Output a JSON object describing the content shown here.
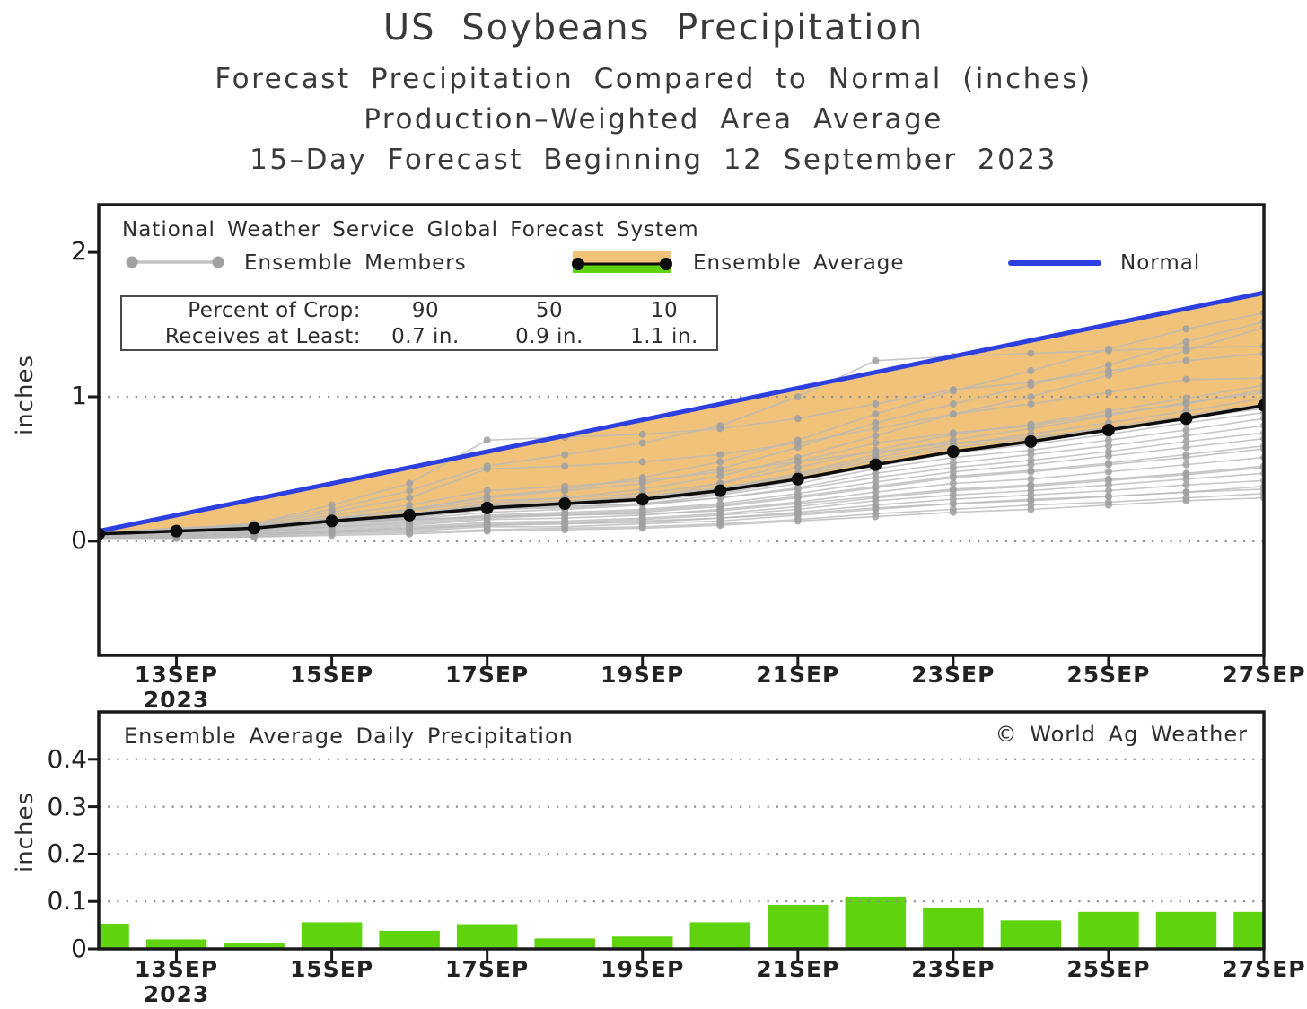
{
  "title": {
    "line1": "US Soybeans Precipitation",
    "line2": "Forecast Precipitation Compared to Normal (inches)",
    "line3": "Production–Weighted Area Average",
    "line4": "15–Day Forecast Beginning 12 September 2023"
  },
  "top_chart": {
    "legend_header": "National Weather Service Global Forecast System",
    "legend": {
      "members_label": "Ensemble Members",
      "average_label": "Ensemble Average",
      "normal_label": "Normal"
    },
    "crop_box": {
      "row1_label": "Percent of Crop:",
      "row1_values": [
        "90",
        "50",
        "10"
      ],
      "row2_label": "Receives at Least:",
      "row2_values": [
        "0.7 in.",
        "0.9 in.",
        "1.1 in."
      ]
    },
    "ylabel": "inches",
    "ytick_labels": [
      "0",
      "1",
      "2"
    ],
    "xtick_labels": [
      "13SEP",
      "15SEP",
      "17SEP",
      "19SEP",
      "21SEP",
      "23SEP",
      "25SEP",
      "27SEP"
    ],
    "year_label": "2023"
  },
  "bottom_chart": {
    "title": "Ensemble Average Daily Precipitation",
    "credit": "© World Ag Weather",
    "ylabel": "inches",
    "ytick_labels": [
      "0",
      "0.1",
      "0.2",
      "0.3",
      "0.4"
    ],
    "xtick_labels": [
      "13SEP",
      "15SEP",
      "17SEP",
      "19SEP",
      "21SEP",
      "23SEP",
      "25SEP",
      "27SEP"
    ],
    "year_label": "2023"
  },
  "colors": {
    "normal_blue": "#2e3fe0",
    "band_orange": "#f0c27a",
    "bar_green": "#5fd40e",
    "member_line_gray": "#b9b9b9",
    "member_dot_gray": "#a0a0a0",
    "average_black": "#0d0d0d",
    "frame_black": "#1a1a1a",
    "grid_gray": "#8f8f8f",
    "legend_swatch_gray": "#c4c4c4"
  },
  "chart_data": [
    {
      "type": "line",
      "title": "Forecast cumulative precipitation compared to normal (inches)",
      "x": [
        "12SEP",
        "13SEP",
        "14SEP",
        "15SEP",
        "16SEP",
        "17SEP",
        "18SEP",
        "19SEP",
        "20SEP",
        "21SEP",
        "22SEP",
        "23SEP",
        "24SEP",
        "25SEP",
        "26SEP",
        "27SEP"
      ],
      "ylabel": "inches",
      "ylim": [
        -0.79,
        2.33
      ],
      "yticks": [
        0,
        1,
        2
      ],
      "gridlines_y": [
        0,
        1
      ],
      "legend_position": "top-inside",
      "series": [
        {
          "name": "Normal",
          "values": [
            0.07,
            0.18,
            0.29,
            0.4,
            0.51,
            0.62,
            0.73,
            0.84,
            0.95,
            1.06,
            1.17,
            1.28,
            1.39,
            1.5,
            1.61,
            1.72
          ]
        },
        {
          "name": "Ensemble Average",
          "values": [
            0.05,
            0.07,
            0.09,
            0.14,
            0.18,
            0.23,
            0.26,
            0.29,
            0.35,
            0.43,
            0.53,
            0.62,
            0.69,
            0.77,
            0.85,
            0.94
          ]
        },
        {
          "name": "Ensemble Members",
          "members": [
            [
              0.02,
              0.02,
              0.03,
              0.05,
              0.06,
              0.08,
              0.09,
              0.1,
              0.12,
              0.15,
              0.19,
              0.22,
              0.25,
              0.27,
              0.3,
              0.33
            ],
            [
              0.02,
              0.03,
              0.04,
              0.06,
              0.07,
              0.1,
              0.1,
              0.12,
              0.14,
              0.18,
              0.22,
              0.26,
              0.28,
              0.31,
              0.34,
              0.38
            ],
            [
              0.03,
              0.04,
              0.05,
              0.07,
              0.09,
              0.12,
              0.13,
              0.15,
              0.18,
              0.22,
              0.28,
              0.32,
              0.35,
              0.39,
              0.43,
              0.47
            ],
            [
              0.05,
              0.08,
              0.1,
              0.13,
              0.15,
              0.17,
              0.18,
              0.19,
              0.21,
              0.26,
              0.31,
              0.36,
              0.39,
              0.43,
              0.47,
              0.52
            ],
            [
              0.03,
              0.04,
              0.06,
              0.09,
              0.11,
              0.15,
              0.16,
              0.18,
              0.22,
              0.27,
              0.34,
              0.4,
              0.43,
              0.48,
              0.53,
              0.58
            ],
            [
              0.03,
              0.05,
              0.06,
              0.1,
              0.12,
              0.16,
              0.18,
              0.2,
              0.24,
              0.3,
              0.37,
              0.44,
              0.48,
              0.53,
              0.58,
              0.64
            ],
            [
              0.04,
              0.05,
              0.07,
              0.11,
              0.14,
              0.18,
              0.2,
              0.22,
              0.26,
              0.33,
              0.41,
              0.48,
              0.53,
              0.59,
              0.65,
              0.71
            ],
            [
              0.06,
              0.09,
              0.11,
              0.15,
              0.18,
              0.22,
              0.24,
              0.26,
              0.3,
              0.36,
              0.44,
              0.51,
              0.56,
              0.62,
              0.69,
              0.75
            ],
            [
              0.04,
              0.06,
              0.08,
              0.12,
              0.15,
              0.2,
              0.22,
              0.25,
              0.3,
              0.37,
              0.47,
              0.54,
              0.6,
              0.66,
              0.73,
              0.8
            ],
            [
              0.05,
              0.06,
              0.08,
              0.13,
              0.16,
              0.22,
              0.23,
              0.26,
              0.32,
              0.4,
              0.5,
              0.58,
              0.63,
              0.7,
              0.77,
              0.85
            ],
            [
              0.05,
              0.07,
              0.09,
              0.13,
              0.17,
              0.23,
              0.25,
              0.28,
              0.33,
              0.42,
              0.52,
              0.61,
              0.67,
              0.74,
              0.82,
              0.89
            ],
            [
              0.05,
              0.07,
              0.09,
              0.14,
              0.18,
              0.24,
              0.27,
              0.3,
              0.36,
              0.45,
              0.56,
              0.65,
              0.71,
              0.79,
              0.87,
              0.95
            ],
            [
              0.05,
              0.07,
              0.1,
              0.15,
              0.19,
              0.25,
              0.28,
              0.31,
              0.37,
              0.46,
              0.58,
              0.67,
              0.74,
              0.82,
              0.9,
              0.99
            ],
            [
              0.04,
              0.06,
              0.08,
              0.12,
              0.16,
              0.22,
              0.25,
              0.29,
              0.36,
              0.47,
              0.6,
              0.7,
              0.78,
              0.87,
              0.96,
              1.03
            ],
            [
              0.06,
              0.08,
              0.1,
              0.16,
              0.21,
              0.28,
              0.3,
              0.33,
              0.4,
              0.51,
              0.63,
              0.74,
              0.81,
              0.9,
              0.99,
              1.08
            ],
            [
              0.05,
              0.08,
              0.11,
              0.2,
              0.3,
              0.5,
              0.52,
              0.55,
              0.6,
              0.68,
              0.78,
              0.88,
              0.95,
              1.03,
              1.12,
              1.13
            ],
            [
              0.05,
              0.08,
              0.12,
              0.25,
              0.4,
              0.7,
              0.72,
              0.74,
              0.78,
              0.85,
              0.95,
              1.05,
              1.1,
              1.18,
              1.25,
              1.3
            ],
            [
              0.06,
              0.09,
              0.12,
              0.22,
              0.35,
              0.52,
              0.6,
              0.68,
              0.8,
              1.0,
              1.25,
              1.28,
              1.3,
              1.32,
              1.34,
              1.35
            ],
            [
              0.05,
              0.07,
              0.1,
              0.15,
              0.22,
              0.3,
              0.35,
              0.4,
              0.5,
              0.65,
              0.82,
              0.95,
              1.08,
              1.22,
              1.38,
              1.52
            ],
            [
              0.04,
              0.06,
              0.09,
              0.14,
              0.19,
              0.26,
              0.3,
              0.36,
              0.45,
              0.58,
              0.73,
              0.88,
              1.0,
              1.15,
              1.32,
              1.48
            ],
            [
              0.05,
              0.08,
              0.1,
              0.16,
              0.22,
              0.31,
              0.36,
              0.44,
              0.55,
              0.7,
              0.88,
              1.04,
              1.18,
              1.33,
              1.47,
              1.58
            ],
            [
              0.03,
              0.05,
              0.07,
              0.1,
              0.13,
              0.17,
              0.19,
              0.21,
              0.25,
              0.31,
              0.38,
              0.45,
              0.49,
              0.54,
              0.6,
              0.66
            ],
            [
              0.02,
              0.03,
              0.05,
              0.08,
              0.1,
              0.13,
              0.14,
              0.16,
              0.19,
              0.24,
              0.3,
              0.35,
              0.38,
              0.42,
              0.46,
              0.51
            ],
            [
              0.02,
              0.02,
              0.03,
              0.04,
              0.05,
              0.07,
              0.08,
              0.09,
              0.11,
              0.14,
              0.17,
              0.2,
              0.22,
              0.25,
              0.28,
              0.3
            ],
            [
              0.05,
              0.07,
              0.09,
              0.14,
              0.18,
              0.24,
              0.26,
              0.29,
              0.4,
              0.55,
              0.68,
              0.75,
              0.8,
              0.88,
              0.95,
              1.05
            ],
            [
              0.06,
              0.08,
              0.1,
              0.18,
              0.25,
              0.35,
              0.38,
              0.42,
              0.48,
              0.55,
              0.62,
              0.68,
              0.72,
              0.78,
              0.85,
              0.92
            ],
            [
              0.02,
              0.03,
              0.04,
              0.06,
              0.08,
              0.11,
              0.12,
              0.13,
              0.16,
              0.2,
              0.25,
              0.29,
              0.32,
              0.35,
              0.39,
              0.42
            ],
            [
              0.03,
              0.04,
              0.05,
              0.07,
              0.09,
              0.11,
              0.12,
              0.14,
              0.16,
              0.19,
              0.23,
              0.26,
              0.29,
              0.31,
              0.34,
              0.36
            ]
          ]
        }
      ]
    },
    {
      "type": "bar",
      "title": "Ensemble Average Daily Precipitation",
      "categories": [
        "12SEP",
        "13SEP",
        "14SEP",
        "15SEP",
        "16SEP",
        "17SEP",
        "18SEP",
        "19SEP",
        "20SEP",
        "21SEP",
        "22SEP",
        "23SEP",
        "24SEP",
        "25SEP",
        "26SEP",
        "27SEP"
      ],
      "values": [
        0.053,
        0.02,
        0.013,
        0.056,
        0.038,
        0.052,
        0.022,
        0.026,
        0.056,
        0.093,
        0.11,
        0.086,
        0.06,
        0.078,
        0.078,
        0.078
      ],
      "ylabel": "inches",
      "ylim": [
        0,
        0.5
      ],
      "yticks": [
        0,
        0.1,
        0.2,
        0.3,
        0.4
      ],
      "gridlines_y": [
        0.1,
        0.2,
        0.3,
        0.4
      ]
    }
  ]
}
